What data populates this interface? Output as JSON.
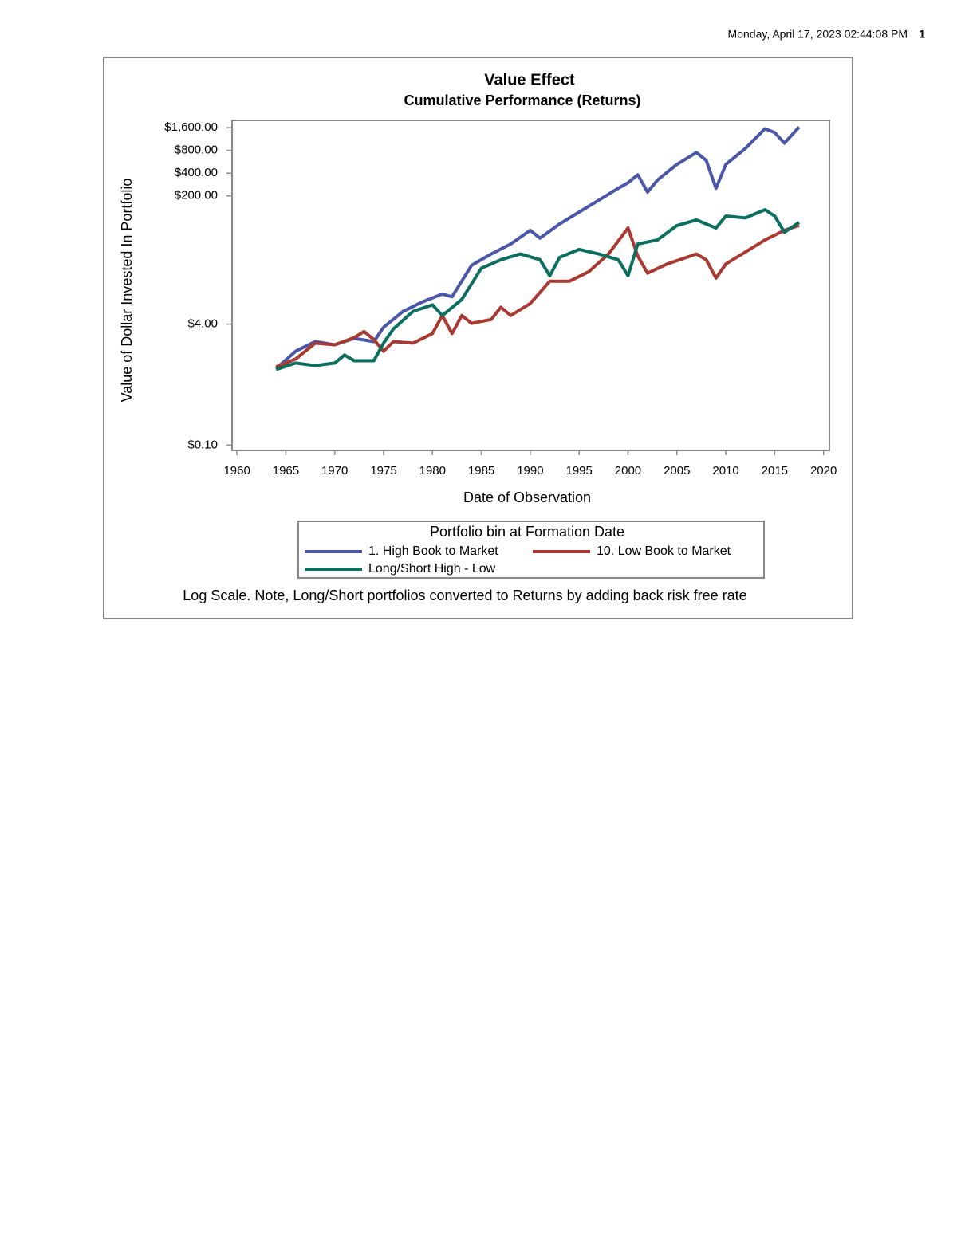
{
  "header": {
    "timestamp": "Monday, April 17, 2023 02:44:08 PM",
    "page_number": "1"
  },
  "chart_data": {
    "type": "line",
    "title": "Value Effect",
    "subtitle": "Cumulative Performance (Returns)",
    "x_label": "Date of Observation",
    "y_label": "Value of Dollar Invested In Portfolio",
    "legend_title": "Portfolio bin at Formation Date",
    "footnote": "Log Scale. Note, Long/Short portfolios converted to Returns by adding back risk free rate",
    "log_scale": true,
    "xlim": [
      1959.5,
      2020.6
    ],
    "xticks": [
      1960,
      1965,
      1970,
      1975,
      1980,
      1985,
      1990,
      1995,
      2000,
      2005,
      2010,
      2015,
      2020
    ],
    "ylim": [
      0.085,
      2000
    ],
    "yticks": [
      {
        "value": 0.1,
        "label": "$0.10"
      },
      {
        "value": 4,
        "label": "$4.00"
      },
      {
        "value": 200,
        "label": "$200.00"
      },
      {
        "value": 400,
        "label": "$400.00"
      },
      {
        "value": 800,
        "label": "$800.00"
      },
      {
        "value": 1600,
        "label": "$1,600.00"
      }
    ],
    "series": [
      {
        "name": "1. High Book to Market",
        "color": "#4a57a8",
        "x": [
          1964,
          1966,
          1968,
          1970,
          1972,
          1974,
          1975,
          1977,
          1979,
          1981,
          1982,
          1984,
          1986,
          1988,
          1990,
          1991,
          1993,
          1995,
          1997,
          1999,
          2000,
          2001,
          2002,
          2003,
          2005,
          2007,
          2008,
          2009,
          2010,
          2012,
          2014,
          2015,
          2016,
          2017.5
        ],
        "values": [
          1.03,
          1.75,
          2.35,
          2.13,
          2.59,
          2.35,
          3.63,
          5.9,
          7.9,
          10,
          9.2,
          24,
          34,
          46,
          70,
          55,
          85,
          122,
          175,
          252,
          299,
          381,
          224,
          322,
          522,
          750,
          590,
          252,
          522,
          847,
          1550,
          1380,
          1000,
          1630
        ]
      },
      {
        "name": "10. Low Book to Market",
        "color": "#a83a32",
        "x": [
          1964,
          1966,
          1968,
          1970,
          1972,
          1973,
          1974,
          1975,
          1976,
          1978,
          1980,
          1981,
          1982,
          1983,
          1984,
          1986,
          1987,
          1988,
          1990,
          1992,
          1994,
          1996,
          1998,
          2000,
          2001,
          2002,
          2004,
          2007,
          2008,
          2009,
          2010,
          2012,
          2014,
          2016,
          2017.5
        ],
        "values": [
          1.08,
          1.38,
          2.24,
          2.13,
          2.65,
          3.2,
          2.5,
          1.75,
          2.35,
          2.24,
          3.0,
          5.2,
          3.0,
          5.2,
          4.1,
          4.6,
          6.7,
          5.2,
          7.5,
          14.8,
          14.8,
          19.8,
          34,
          75,
          32,
          18.9,
          25,
          34,
          28.5,
          16.3,
          25,
          36,
          52,
          70,
          81
        ]
      },
      {
        "name": "Long/Short High - Low",
        "color": "#0b6e5f",
        "x": [
          1964,
          1966,
          1968,
          1970,
          1971,
          1972,
          1974,
          1975,
          1976,
          1978,
          1980,
          1981,
          1983,
          1985,
          1987,
          1989,
          1991,
          1992,
          1993,
          1995,
          1997,
          1999,
          2000,
          2001,
          2003,
          2005,
          2007,
          2009,
          2010,
          2012,
          2014,
          2015,
          2016,
          2017.5
        ],
        "values": [
          1.0,
          1.22,
          1.13,
          1.22,
          1.56,
          1.31,
          1.31,
          2.24,
          3.46,
          5.9,
          7.2,
          5.2,
          8.5,
          22,
          28.5,
          34,
          28.5,
          17.5,
          30.6,
          39,
          34,
          28.5,
          17.5,
          46,
          52,
          81,
          96,
          75,
          108,
          102,
          131,
          108,
          66,
          89
        ]
      }
    ]
  }
}
